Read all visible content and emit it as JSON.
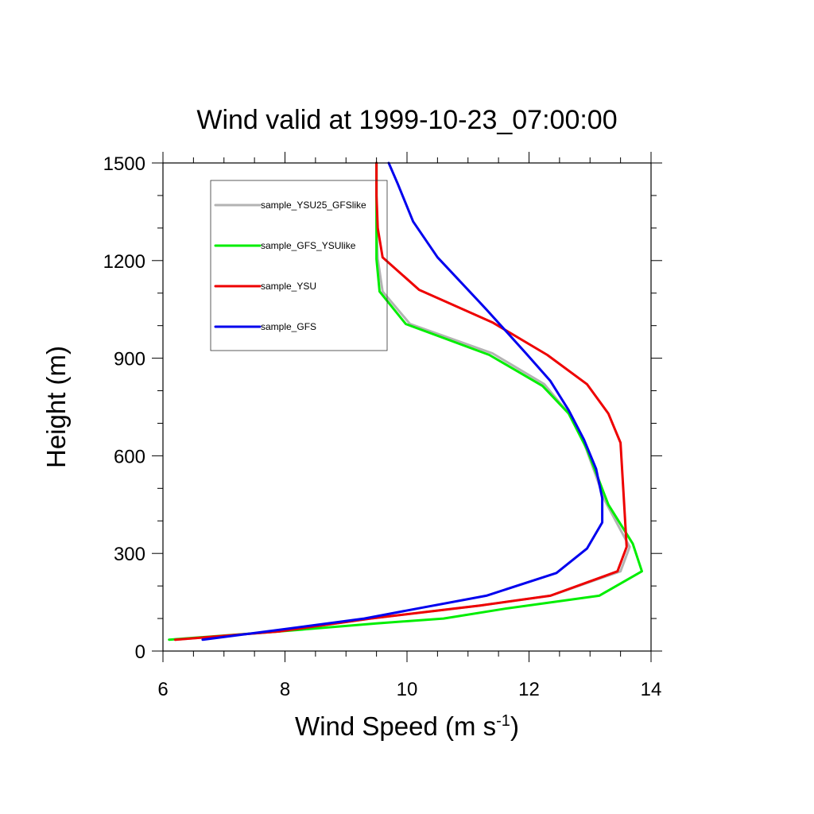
{
  "chart_data": {
    "type": "line",
    "title": "Wind valid at 1999-10-23_07:00:00",
    "xlabel": "Wind Speed (m s",
    "xlabel_superscript": "-1",
    "xlabel_suffix": ")",
    "ylabel": "Height (m)",
    "xlim": [
      6,
      14
    ],
    "ylim": [
      0,
      1500
    ],
    "x_ticks": [
      6,
      8,
      10,
      12,
      14
    ],
    "y_ticks": [
      0,
      300,
      600,
      900,
      1200,
      1500
    ],
    "x_tick_labels": [
      "6",
      "8",
      "10",
      "12",
      "14"
    ],
    "y_tick_labels": [
      "0",
      "300",
      "600",
      "900",
      "1200",
      "1500"
    ],
    "grid": false,
    "legend_placement": "top-left",
    "series": [
      {
        "name": "sample_YSU25_GFSlike",
        "color": "#b3b3b3",
        "points": [
          [
            6.2,
            35
          ],
          [
            7.9,
            60
          ],
          [
            9.4,
            100
          ],
          [
            11.2,
            140
          ],
          [
            12.35,
            170
          ],
          [
            13.5,
            245
          ],
          [
            13.65,
            320
          ],
          [
            13.25,
            460
          ],
          [
            12.9,
            640
          ],
          [
            12.65,
            730
          ],
          [
            12.25,
            820
          ],
          [
            11.4,
            915
          ],
          [
            10.05,
            1005
          ],
          [
            9.6,
            1105
          ],
          [
            9.52,
            1205
          ],
          [
            9.5,
            1300
          ],
          [
            9.5,
            1400
          ],
          [
            9.5,
            1500
          ]
        ]
      },
      {
        "name": "sample_GFS_YSUlike",
        "color": "#00ee00",
        "points": [
          [
            6.1,
            35
          ],
          [
            7.9,
            60
          ],
          [
            9.5,
            85
          ],
          [
            10.6,
            100
          ],
          [
            11.6,
            130
          ],
          [
            13.15,
            170
          ],
          [
            13.85,
            245
          ],
          [
            13.7,
            330
          ],
          [
            13.3,
            450
          ],
          [
            12.95,
            620
          ],
          [
            12.65,
            730
          ],
          [
            12.22,
            815
          ],
          [
            11.35,
            910
          ],
          [
            9.98,
            1005
          ],
          [
            9.55,
            1105
          ],
          [
            9.5,
            1205
          ],
          [
            9.5,
            1300
          ],
          [
            9.5,
            1400
          ],
          [
            9.5,
            1500
          ]
        ]
      },
      {
        "name": "sample_YSU",
        "color": "#ee0000",
        "points": [
          [
            6.2,
            35
          ],
          [
            7.9,
            60
          ],
          [
            9.4,
            100
          ],
          [
            11.2,
            140
          ],
          [
            12.35,
            170
          ],
          [
            13.45,
            245
          ],
          [
            13.6,
            320
          ],
          [
            13.55,
            480
          ],
          [
            13.5,
            640
          ],
          [
            13.3,
            730
          ],
          [
            12.95,
            820
          ],
          [
            12.3,
            910
          ],
          [
            11.4,
            1010
          ],
          [
            10.2,
            1110
          ],
          [
            9.6,
            1210
          ],
          [
            9.52,
            1300
          ],
          [
            9.5,
            1400
          ],
          [
            9.5,
            1500
          ]
        ]
      },
      {
        "name": "sample_GFS",
        "color": "#0000ee",
        "points": [
          [
            6.65,
            35
          ],
          [
            7.9,
            65
          ],
          [
            9.3,
            100
          ],
          [
            10.3,
            135
          ],
          [
            11.3,
            170
          ],
          [
            12.45,
            240
          ],
          [
            12.95,
            315
          ],
          [
            13.2,
            395
          ],
          [
            13.2,
            470
          ],
          [
            13.1,
            560
          ],
          [
            12.9,
            650
          ],
          [
            12.65,
            740
          ],
          [
            12.35,
            830
          ],
          [
            11.95,
            915
          ],
          [
            11.3,
            1050
          ],
          [
            10.5,
            1210
          ],
          [
            10.1,
            1320
          ],
          [
            9.85,
            1435
          ],
          [
            9.7,
            1500
          ]
        ]
      }
    ]
  }
}
